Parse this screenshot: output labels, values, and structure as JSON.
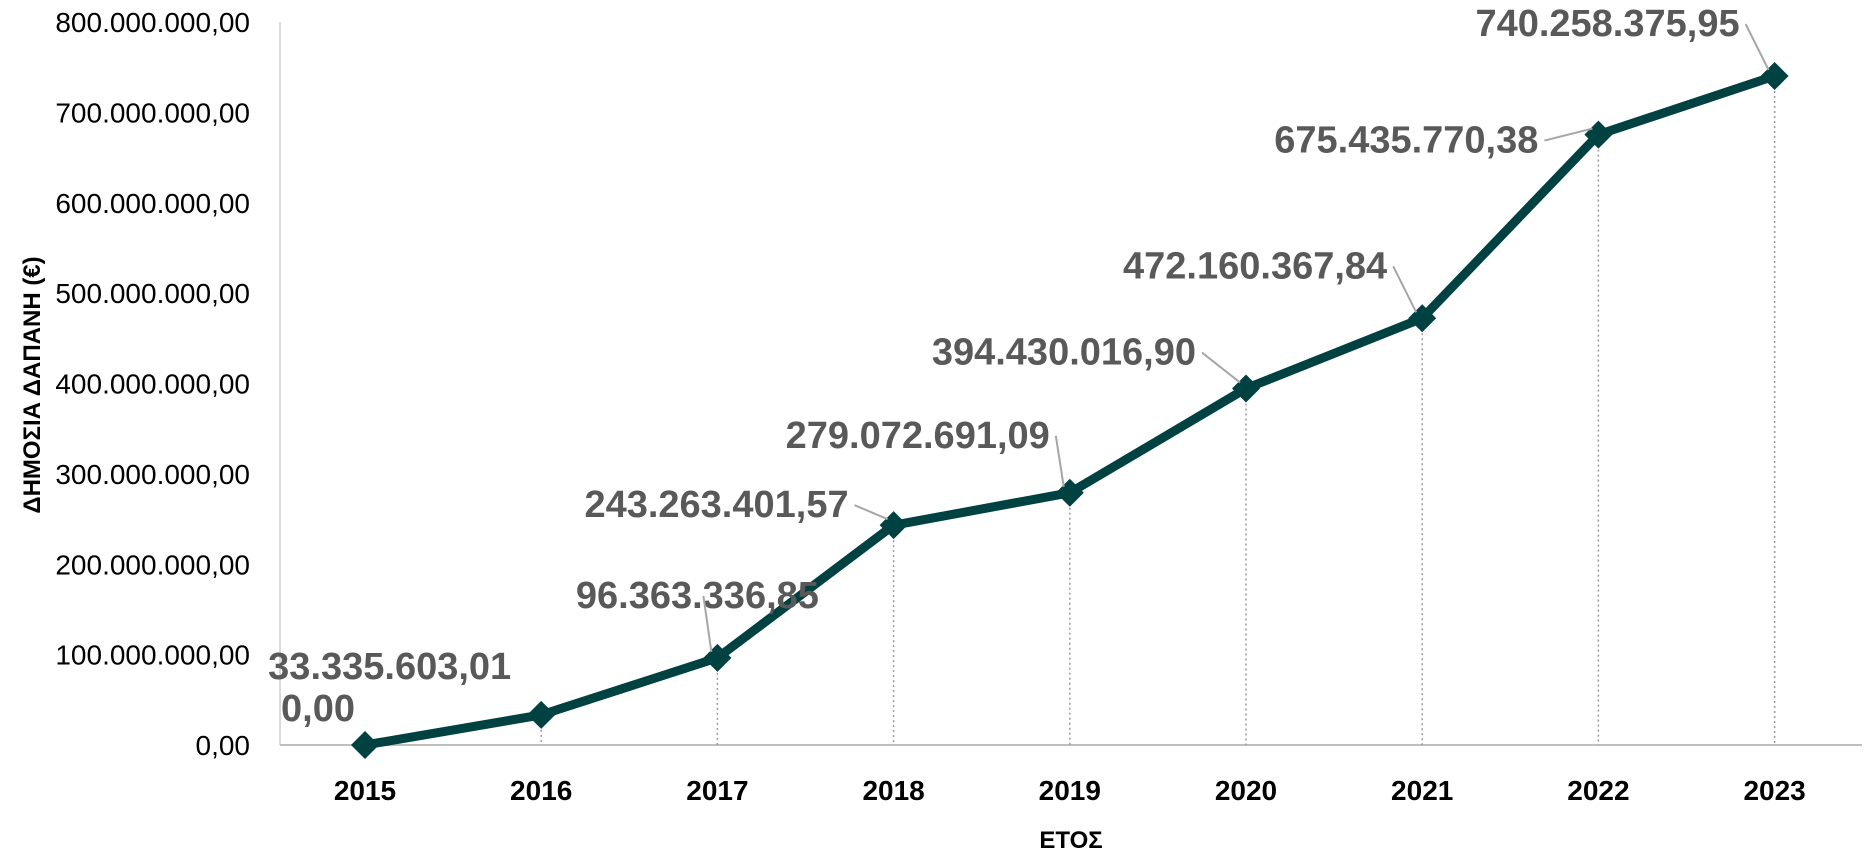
{
  "chart_data": {
    "type": "line",
    "xlabel": "ΕΤΟΣ",
    "ylabel": "ΔΗΜΟΣΙΑ ΔΑΠΑΝΗ (€)",
    "ylim": [
      0,
      800000000
    ],
    "yticks": [
      0,
      100000000,
      200000000,
      300000000,
      400000000,
      500000000,
      600000000,
      700000000,
      800000000
    ],
    "ytick_labels": [
      "0,00",
      "100.000.000,00",
      "200.000.000,00",
      "300.000.000,00",
      "400.000.000,00",
      "500.000.000,00",
      "600.000.000,00",
      "700.000.000,00",
      "800.000.000,00"
    ],
    "categories": [
      "2015",
      "2016",
      "2017",
      "2018",
      "2019",
      "2020",
      "2021",
      "2022",
      "2023"
    ],
    "series": [
      {
        "values": [
          0,
          33335603.01,
          96363336.85,
          243263401.57,
          279072691.09,
          394430016.9,
          472160367.84,
          675435770.38,
          740258375.95
        ],
        "labels": [
          "0,00",
          "33.335.603,01",
          "96.363.336,85",
          "243.263.401,57",
          "279.072.691,09",
          "394.430.016,90",
          "472.160.367,84",
          "675.435.770,38",
          "740.258.375,95"
        ],
        "color": "#004241",
        "marker": "diamond"
      }
    ],
    "grid": false,
    "drop_lines": true
  }
}
